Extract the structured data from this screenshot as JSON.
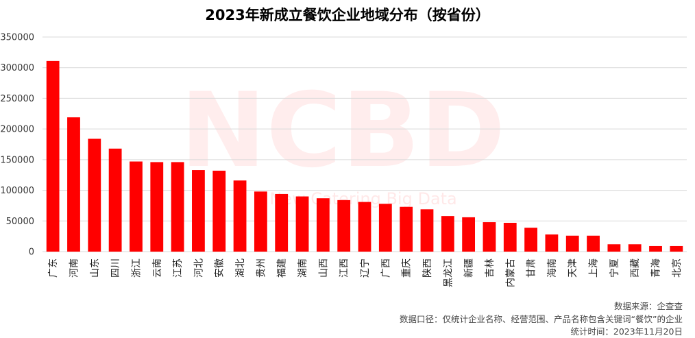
{
  "chart_data": {
    "type": "bar",
    "title": "2023年新成立餐饮企业地域分布（按省份）",
    "categories": [
      "广东",
      "河南",
      "山东",
      "四川",
      "浙江",
      "云南",
      "江苏",
      "河北",
      "安徽",
      "湖北",
      "贵州",
      "福建",
      "湖南",
      "山西",
      "江西",
      "辽宁",
      "广西",
      "重庆",
      "陕西",
      "黑龙江",
      "新疆",
      "吉林",
      "内蒙古",
      "甘肃",
      "海南",
      "天津",
      "上海",
      "宁夏",
      "西藏",
      "青海",
      "北京"
    ],
    "values": [
      311000,
      219000,
      184000,
      168000,
      147000,
      146000,
      146000,
      133000,
      132000,
      116000,
      98000,
      94000,
      90000,
      87000,
      84000,
      81000,
      78000,
      73000,
      69000,
      58000,
      56000,
      48000,
      47000,
      39000,
      28000,
      26000,
      26000,
      12000,
      12000,
      9000,
      9000
    ],
    "yticks": [
      "0",
      "50000",
      "100000",
      "150000",
      "200000",
      "250000",
      "300000",
      "350000"
    ],
    "ylim": [
      0,
      350000
    ],
    "grid": true,
    "legend": "none",
    "bar_color": "#ff0000"
  },
  "watermark": {
    "logo": "NCBD",
    "text": "New Catering Big Data"
  },
  "footer": {
    "source": "数据来源：企查查",
    "scope": "数据口径：仅统计企业名称、经营范围、产品名称包含关键词“餐饮”的企业",
    "stat_time": "统计时间：2023年11月20日"
  }
}
